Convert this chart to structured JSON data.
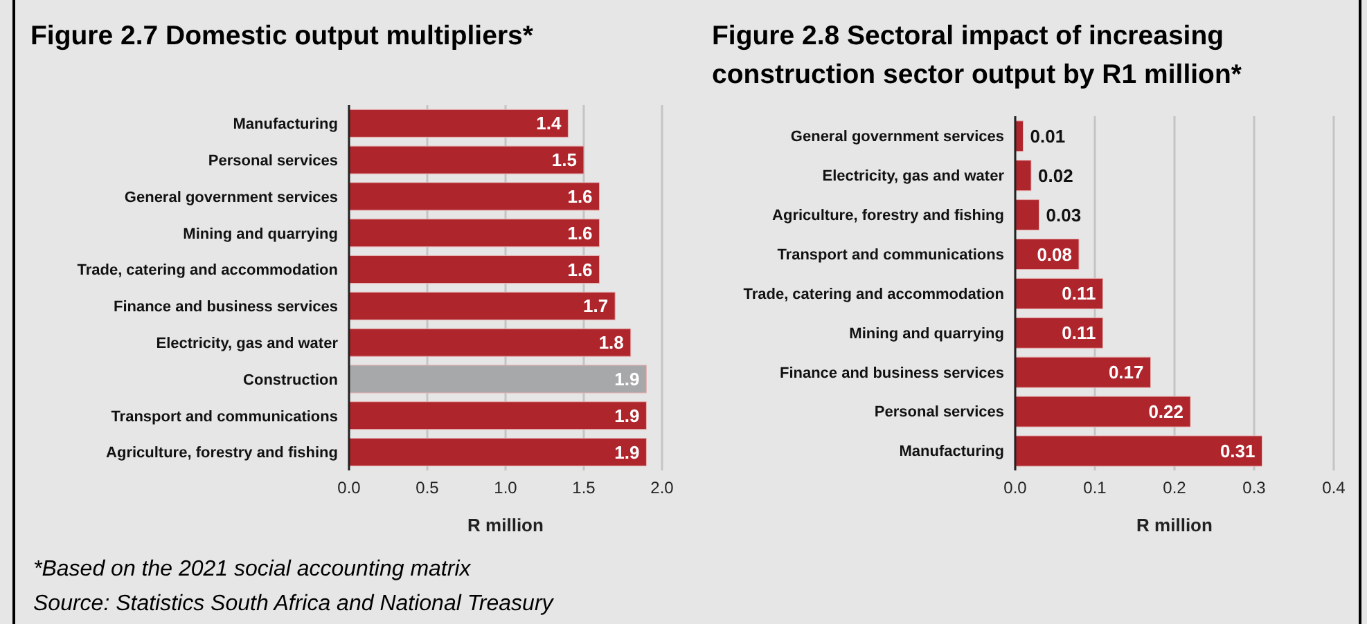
{
  "chart_data": [
    {
      "type": "bar",
      "orientation": "horizontal",
      "title": "Figure 2.7 Domestic output multipliers*",
      "xlabel": "R million",
      "categories": [
        "Manufacturing",
        "Personal services",
        "General government services",
        "Mining and quarrying",
        "Trade, catering and accommodation",
        "Finance and business services",
        "Electricity, gas and water",
        "Construction",
        "Transport and communications",
        "Agriculture, forestry and fishing"
      ],
      "values": [
        1.4,
        1.5,
        1.6,
        1.6,
        1.6,
        1.7,
        1.8,
        1.9,
        1.9,
        1.9
      ],
      "colors": [
        "#ae252c",
        "#ae252c",
        "#ae252c",
        "#ae252c",
        "#ae252c",
        "#ae252c",
        "#ae252c",
        "#a7a8aa",
        "#ae252c",
        "#ae252c"
      ],
      "xlim": [
        0,
        2
      ],
      "xticks": [
        {
          "value": 0,
          "label": "0.0"
        },
        {
          "value": 0.5,
          "label": "0.5"
        },
        {
          "value": 1,
          "label": "1.0"
        },
        {
          "value": 1.5,
          "label": "1.5"
        },
        {
          "value": 2,
          "label": "2.0"
        }
      ],
      "grid": "x",
      "data_labels": true,
      "annotations": [
        "*Based on the 2021 social accounting matrix",
        "Source: Statistics South Africa and National Treasury"
      ]
    },
    {
      "type": "bar",
      "orientation": "horizontal",
      "title": "Figure 2.8 Sectoral impact of increasing construction sector output by R1 million*",
      "xlabel": "R million",
      "categories": [
        "General government services",
        "Electricity, gas and water",
        "Agriculture, forestry and fishing",
        "Transport and communications",
        "Trade, catering and accommodation",
        "Mining and quarrying",
        "Finance and business services",
        "Personal services",
        "Manufacturing"
      ],
      "values": [
        0.01,
        0.02,
        0.03,
        0.08,
        0.11,
        0.11,
        0.17,
        0.22,
        0.31
      ],
      "color": "#ae252c",
      "xlim": [
        0,
        0.4
      ],
      "xticks": [
        {
          "value": 0,
          "label": "0.0"
        },
        {
          "value": 0.1,
          "label": "0.1"
        },
        {
          "value": 0.2,
          "label": "0.2"
        },
        {
          "value": 0.3,
          "label": "0.3"
        },
        {
          "value": 0.4,
          "label": "0.4"
        }
      ],
      "grid": "x",
      "data_labels": true
    }
  ]
}
